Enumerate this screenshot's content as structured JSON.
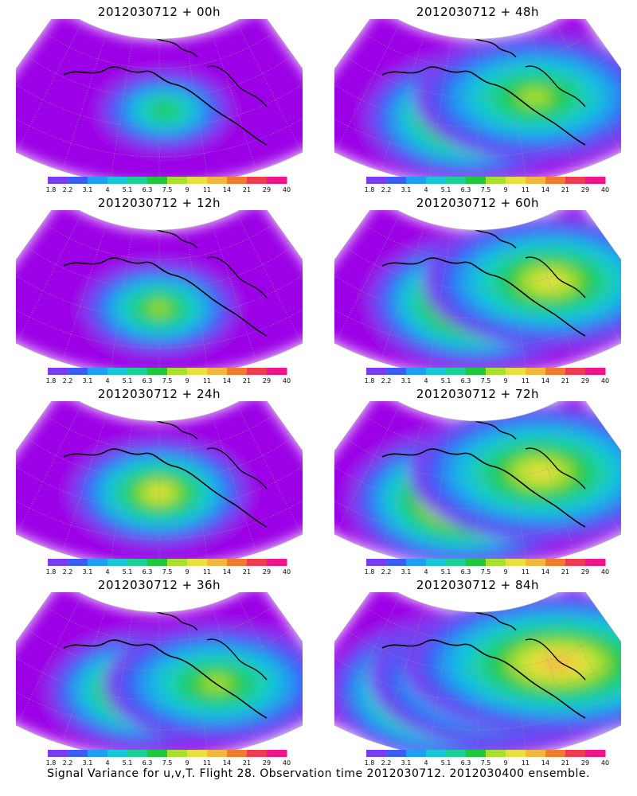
{
  "chart_data": {
    "type": "heatmap",
    "color_levels": [
      "1.8",
      "2.2",
      "3.1",
      "4",
      "5.1",
      "6.3",
      "7.5",
      "9",
      "11",
      "14",
      "21",
      "29",
      "40"
    ],
    "colors": [
      "#9b00e6",
      "#7a3cf0",
      "#3b5cf5",
      "#1e9ef0",
      "#19c7d6",
      "#1bd196",
      "#20c840",
      "#a8e030",
      "#e8e040",
      "#f0b840",
      "#f07a30",
      "#f03c50",
      "#f0148c"
    ],
    "panels": [
      {
        "title": "2012030712 + 00h",
        "intensity": 0.35,
        "hot": [
          [
            0.52,
            0.5
          ]
        ],
        "spread": 0.55
      },
      {
        "title": "2012030712 + 12h",
        "intensity": 0.5,
        "hot": [
          [
            0.5,
            0.55
          ]
        ],
        "spread": 0.65
      },
      {
        "title": "2012030712 + 24h",
        "intensity": 0.6,
        "hot": [
          [
            0.5,
            0.5
          ]
        ],
        "spread": 0.75
      },
      {
        "title": "2012030712 + 36h",
        "intensity": 0.68,
        "hot": [
          [
            0.45,
            0.55
          ],
          [
            0.7,
            0.5
          ]
        ],
        "spread": 0.82
      },
      {
        "title": "2012030712 + 48h",
        "intensity": 0.72,
        "hot": [
          [
            0.47,
            0.55
          ],
          [
            0.7,
            0.4
          ]
        ],
        "spread": 0.88
      },
      {
        "title": "2012030712 + 60h",
        "intensity": 0.78,
        "hot": [
          [
            0.5,
            0.5
          ],
          [
            0.75,
            0.35
          ]
        ],
        "spread": 0.92
      },
      {
        "title": "2012030712 + 72h",
        "intensity": 0.84,
        "hot": [
          [
            0.45,
            0.55
          ],
          [
            0.72,
            0.35
          ]
        ],
        "spread": 0.96
      },
      {
        "title": "2012030712 + 84h",
        "intensity": 0.9,
        "hot": [
          [
            0.4,
            0.55
          ],
          [
            0.6,
            0.45
          ],
          [
            0.78,
            0.35
          ]
        ],
        "spread": 1.0
      }
    ]
  },
  "footer": "Signal Variance for u,v,T. Flight 28. Observation time 2012030712. 2012030400 ensemble."
}
